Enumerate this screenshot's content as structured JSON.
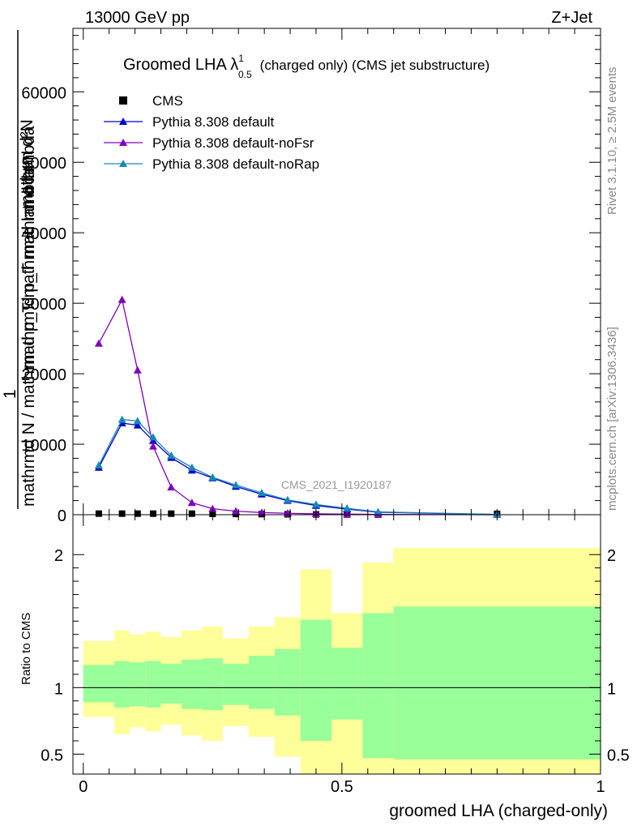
{
  "header": {
    "left": "13000 GeV pp",
    "right": "Z+Jet"
  },
  "side": {
    "rivet": "Rivet 3.1.10, ≥ 2.5M events",
    "mcplots": "mcplots.cern.ch [arXiv:1306.3436]"
  },
  "colors": {
    "cms": "#000000",
    "default": "#0000cc",
    "noFsr": "#7f00bf",
    "noRap": "#1a86b8",
    "band_outer": "#ffff99",
    "band_inner": "#99ff99"
  },
  "chart_data": [
    {
      "type": "line",
      "title": "Groomed LHA λ",
      "title_sup": "1",
      "title_sub": "0.5",
      "title_rest": "(charged only) (CMS jet substructure)",
      "analysis": "CMS_2021_I1920187",
      "ylabel_top": "mathrm d²N",
      "ylabel_mid": "mathrm d p_T mathrm d lambda",
      "ylabel_left_num": "1",
      "ylabel_denominator": "mathrmd N / mathrm d p_T mathrm d lambda",
      "ylim": [
        0,
        69000
      ],
      "yticks": [
        {
          "v": 0,
          "label": "0"
        },
        {
          "v": 10000,
          "label": "10000"
        },
        {
          "v": 20000,
          "label": "20000"
        },
        {
          "v": 30000,
          "label": "30000"
        },
        {
          "v": 40000,
          "label": "40000"
        },
        {
          "v": 50000,
          "label": "50000"
        },
        {
          "v": 60000,
          "label": "60000"
        }
      ],
      "xlim": [
        -0.02,
        1.0
      ],
      "series": [
        {
          "name": "CMS",
          "marker": "square",
          "color_key": "cms",
          "x": [
            0.03,
            0.075,
            0.105,
            0.135,
            0.17,
            0.21,
            0.25,
            0.295,
            0.345,
            0.395,
            0.45,
            0.51,
            0.57,
            0.8
          ],
          "y": [
            150,
            150,
            150,
            150,
            150,
            150,
            120,
            100,
            80,
            60,
            40,
            30,
            20,
            120
          ]
        },
        {
          "name": "Pythia 8.308 default",
          "marker": "triangle",
          "color_key": "default",
          "x": [
            0.03,
            0.075,
            0.105,
            0.135,
            0.17,
            0.21,
            0.25,
            0.295,
            0.345,
            0.395,
            0.45,
            0.51,
            0.57,
            0.8
          ],
          "y": [
            6700,
            13000,
            12700,
            10500,
            8100,
            6300,
            5200,
            4000,
            2900,
            2000,
            1300,
            800,
            350,
            30
          ]
        },
        {
          "name": "Pythia 8.308 default-noFsr",
          "marker": "triangle",
          "color_key": "noFsr",
          "x": [
            0.03,
            0.075,
            0.105,
            0.135,
            0.17,
            0.21,
            0.25,
            0.295,
            0.345,
            0.395,
            0.45,
            0.51,
            0.57,
            0.8
          ],
          "y": [
            24300,
            30500,
            20500,
            9700,
            3900,
            1700,
            850,
            500,
            300,
            200,
            120,
            80,
            40,
            10
          ]
        },
        {
          "name": "Pythia 8.308 default-noRap",
          "marker": "triangle",
          "color_key": "noRap",
          "x": [
            0.03,
            0.075,
            0.105,
            0.135,
            0.17,
            0.21,
            0.25,
            0.295,
            0.345,
            0.395,
            0.45,
            0.51,
            0.57,
            0.8
          ],
          "y": [
            7000,
            13500,
            13300,
            11000,
            8400,
            6700,
            5300,
            4200,
            3100,
            2100,
            1450,
            900,
            400,
            40
          ]
        }
      ]
    },
    {
      "type": "area",
      "ylabel": "Ratio to CMS",
      "xlabel": "groomed LHA (charged-only)",
      "xlim": [
        -0.02,
        1.0
      ],
      "ylim": [
        0.35,
        2.3
      ],
      "xticks": [
        {
          "v": 0,
          "label": "0"
        },
        {
          "v": 0.5,
          "label": "0.5"
        },
        {
          "v": 1,
          "label": "1"
        }
      ],
      "yticks": [
        {
          "v": 0.5,
          "label": "0.5"
        },
        {
          "v": 1,
          "label": "1"
        },
        {
          "v": 2,
          "label": "2"
        }
      ],
      "bins": [
        {
          "x0": 0.0,
          "x1": 0.06,
          "inner": [
            0.89,
            1.17
          ],
          "outer": [
            0.78,
            1.35
          ]
        },
        {
          "x0": 0.06,
          "x1": 0.09,
          "inner": [
            0.85,
            1.2
          ],
          "outer": [
            0.65,
            1.43
          ]
        },
        {
          "x0": 0.09,
          "x1": 0.12,
          "inner": [
            0.86,
            1.19
          ],
          "outer": [
            0.7,
            1.4
          ]
        },
        {
          "x0": 0.12,
          "x1": 0.15,
          "inner": [
            0.85,
            1.2
          ],
          "outer": [
            0.67,
            1.42
          ]
        },
        {
          "x0": 0.15,
          "x1": 0.19,
          "inner": [
            0.88,
            1.18
          ],
          "outer": [
            0.72,
            1.38
          ]
        },
        {
          "x0": 0.19,
          "x1": 0.23,
          "inner": [
            0.84,
            1.21
          ],
          "outer": [
            0.64,
            1.43
          ]
        },
        {
          "x0": 0.23,
          "x1": 0.27,
          "inner": [
            0.83,
            1.22
          ],
          "outer": [
            0.6,
            1.46
          ]
        },
        {
          "x0": 0.27,
          "x1": 0.32,
          "inner": [
            0.87,
            1.18
          ],
          "outer": [
            0.71,
            1.37
          ]
        },
        {
          "x0": 0.32,
          "x1": 0.37,
          "inner": [
            0.84,
            1.24
          ],
          "outer": [
            0.63,
            1.46
          ]
        },
        {
          "x0": 0.37,
          "x1": 0.42,
          "inner": [
            0.79,
            1.29
          ],
          "outer": [
            0.48,
            1.53
          ]
        },
        {
          "x0": 0.42,
          "x1": 0.48,
          "inner": [
            0.6,
            1.51
          ],
          "outer": [
            0.2,
            1.89
          ]
        },
        {
          "x0": 0.48,
          "x1": 0.54,
          "inner": [
            0.76,
            1.3
          ],
          "outer": [
            0.31,
            1.56
          ]
        },
        {
          "x0": 0.54,
          "x1": 0.6,
          "inner": [
            0.47,
            1.56
          ],
          "outer": [
            0.25,
            1.94
          ]
        },
        {
          "x0": 0.6,
          "x1": 1.0,
          "inner": [
            0.46,
            1.61
          ],
          "outer": [
            0.25,
            2.05
          ]
        }
      ]
    }
  ]
}
